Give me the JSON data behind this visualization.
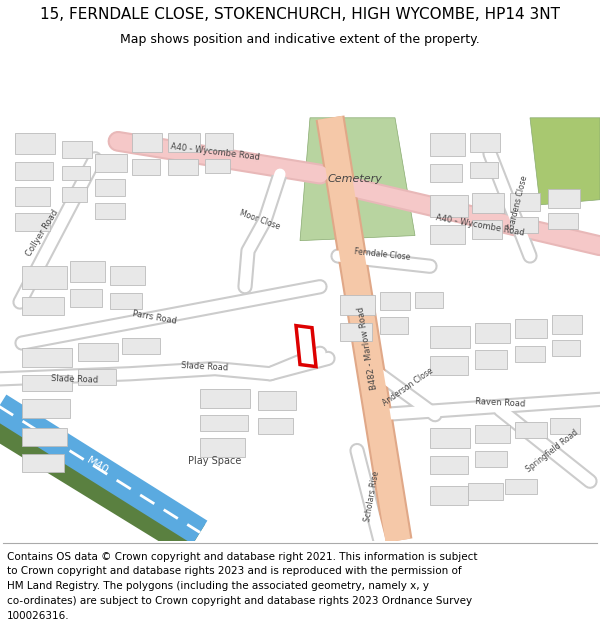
{
  "title_line1": "15, FERNDALE CLOSE, STOKENCHURCH, HIGH WYCOMBE, HP14 3NT",
  "title_line2": "Map shows position and indicative extent of the property.",
  "footer_lines": [
    "Contains OS data © Crown copyright and database right 2021. This information is subject",
    "to Crown copyright and database rights 2023 and is reproduced with the permission of",
    "HM Land Registry. The polygons (including the associated geometry, namely x, y",
    "co-ordinates) are subject to Crown copyright and database rights 2023 Ordnance Survey",
    "100026316."
  ],
  "map_bg": "#f8f8f8",
  "road_a_color": "#f5c8c8",
  "road_a_outline": "#e8b8b8",
  "road_b_color": "#f5c8a8",
  "road_b_outline": "#e0a888",
  "road_minor_color": "#ffffff",
  "road_minor_outline": "#cccccc",
  "building_color": "#e8e8e8",
  "building_outline": "#bbbbbb",
  "cemetery_color": "#b8d4a0",
  "cemetery_outline": "#88aa70",
  "motorway_blue": "#5aaae0",
  "motorway_green": "#5a8040",
  "motorway_white": "#ffffff",
  "green_color": "#a8c870",
  "plot_outline": "#dd0000",
  "plot_fill": "#ffffff",
  "title_fontsize": 11,
  "subtitle_fontsize": 9,
  "footer_fontsize": 7.5
}
